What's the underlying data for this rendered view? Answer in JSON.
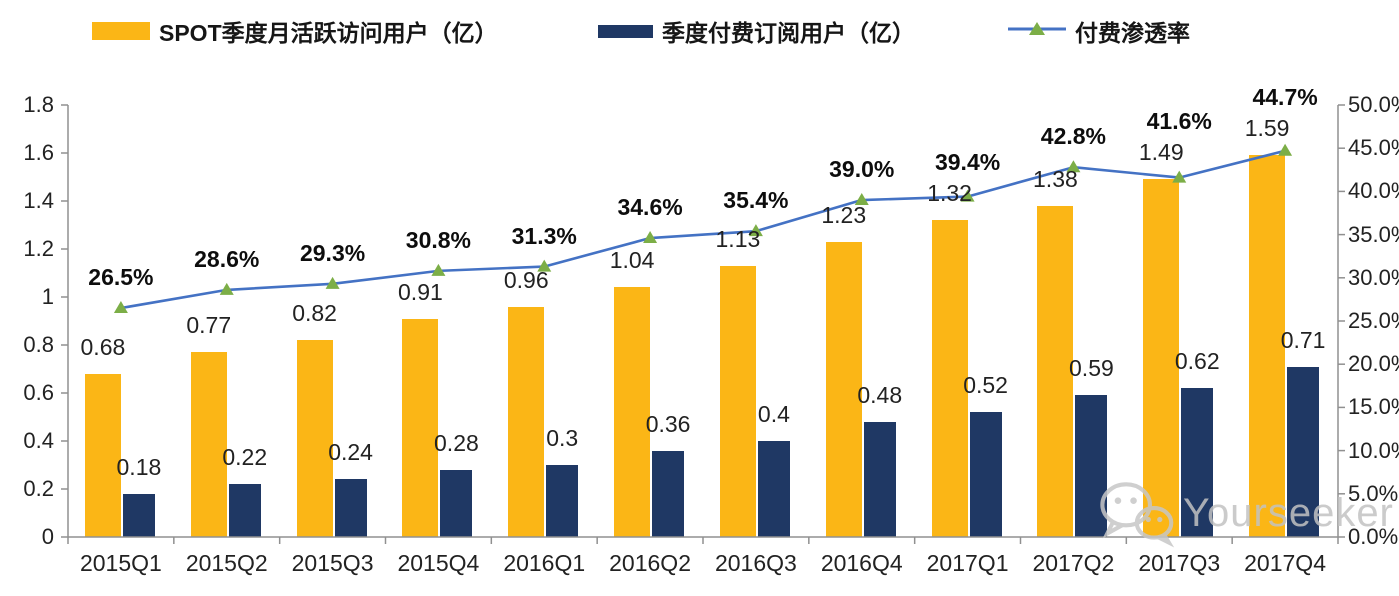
{
  "legend": {
    "items": [
      {
        "label": "SPOT季度月活跃访问用户（亿）",
        "type": "bar",
        "color": "#FBB616"
      },
      {
        "label": "季度付费订阅用户（亿）",
        "type": "bar",
        "color": "#1F3864"
      },
      {
        "label": "付费渗透率",
        "type": "line",
        "color": "#4472C4",
        "marker_color": "#7CAE47"
      }
    ]
  },
  "chart_data": {
    "type": "bar+line combo",
    "title": "",
    "categories": [
      "2015Q1",
      "2015Q2",
      "2015Q3",
      "2015Q4",
      "2016Q1",
      "2016Q2",
      "2016Q3",
      "2016Q4",
      "2017Q1",
      "2017Q2",
      "2017Q3",
      "2017Q4"
    ],
    "series": [
      {
        "name": "SPOT季度月活跃访问用户（亿）",
        "type": "bar",
        "axis": "left",
        "color": "#FBB616",
        "values": [
          0.68,
          0.77,
          0.82,
          0.91,
          0.96,
          1.04,
          1.13,
          1.23,
          1.32,
          1.38,
          1.49,
          1.59
        ],
        "labels": [
          "0.68",
          "0.77",
          "0.82",
          "0.91",
          "0.96",
          "1.04",
          "1.13",
          "1.23",
          "1.32",
          "1.38",
          "1.49",
          "1.59"
        ]
      },
      {
        "name": "季度付费订阅用户（亿）",
        "type": "bar",
        "axis": "left",
        "color": "#1F3864",
        "values": [
          0.18,
          0.22,
          0.24,
          0.28,
          0.3,
          0.36,
          0.4,
          0.48,
          0.52,
          0.59,
          0.62,
          0.71
        ],
        "labels": [
          "0.18",
          "0.22",
          "0.24",
          "0.28",
          "0.3",
          "0.36",
          "0.4",
          "0.48",
          "0.52",
          "0.59",
          "0.62",
          "0.71"
        ]
      },
      {
        "name": "付费渗透率",
        "type": "line",
        "axis": "right",
        "color": "#4472C4",
        "marker": "triangle",
        "marker_color": "#7CAE47",
        "values": [
          26.5,
          28.6,
          29.3,
          30.8,
          31.3,
          34.6,
          35.4,
          39.0,
          39.4,
          42.8,
          41.6,
          44.7
        ],
        "labels": [
          "26.5%",
          "28.6%",
          "29.3%",
          "30.8%",
          "31.3%",
          "34.6%",
          "35.4%",
          "39.0%",
          "39.4%",
          "42.8%",
          "41.6%",
          "44.7%"
        ]
      }
    ],
    "left_axis": {
      "min": 0,
      "max": 1.8,
      "step": 0.2,
      "ticks": [
        "0",
        "0.2",
        "0.4",
        "0.6",
        "0.8",
        "1",
        "1.2",
        "1.4",
        "1.6",
        "1.8"
      ]
    },
    "right_axis": {
      "min": 0,
      "max": 50,
      "step": 5,
      "ticks": [
        "0.0%",
        "5.0%",
        "10.0%",
        "15.0%",
        "20.0%",
        "25.0%",
        "30.0%",
        "35.0%",
        "40.0%",
        "45.0%",
        "50.0%"
      ]
    },
    "grid": false,
    "legend_position": "top"
  },
  "watermark": {
    "text": "Yourseeker",
    "icon": "wechat-icon"
  },
  "colors": {
    "axis": "#909090",
    "text": "#222222",
    "background": "#FFFFFF"
  }
}
